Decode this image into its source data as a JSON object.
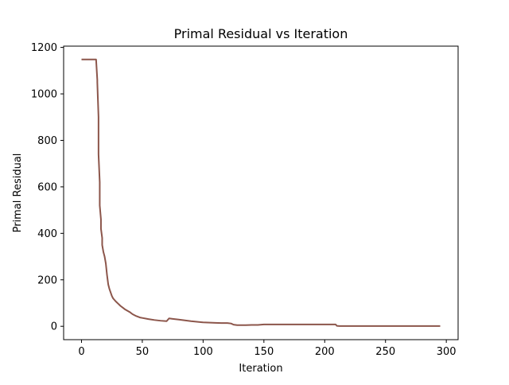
{
  "chart_data": {
    "type": "line",
    "title": "Primal Residual vs Iteration",
    "xlabel": "Iteration",
    "ylabel": "Primal Residual",
    "xlim": [
      -14.7,
      309.7
    ],
    "ylim": [
      -57.5,
      1205.5
    ],
    "xticks": [
      0,
      50,
      100,
      150,
      200,
      250,
      300
    ],
    "yticks": [
      0,
      200,
      400,
      600,
      800,
      1000,
      1200
    ],
    "grid": false,
    "legend": "none",
    "series": [
      {
        "color": "#8c564b",
        "x": [
          0,
          12,
          13,
          13,
          14,
          14,
          15,
          15,
          16,
          16,
          17,
          17,
          18,
          19,
          20,
          21,
          22,
          23,
          24,
          25,
          26,
          28,
          30,
          32,
          34,
          36,
          38,
          40,
          42,
          45,
          48,
          50,
          55,
          60,
          65,
          70,
          72,
          75,
          80,
          90,
          100,
          110,
          115,
          120,
          123,
          125,
          128,
          130,
          135,
          140,
          145,
          150,
          155,
          160,
          170,
          180,
          190,
          200,
          205,
          209,
          210,
          212,
          220,
          240,
          260,
          280,
          295
        ],
        "y": [
          1148,
          1148,
          1060,
          1050,
          900,
          740,
          620,
          520,
          460,
          420,
          380,
          350,
          320,
          300,
          270,
          220,
          180,
          160,
          145,
          130,
          120,
          108,
          98,
          88,
          80,
          72,
          66,
          60,
          52,
          44,
          38,
          36,
          31,
          27,
          24,
          22,
          34,
          32,
          29,
          22,
          17,
          15,
          14,
          14,
          12,
          7,
          5,
          5,
          5,
          6,
          6,
          8,
          8,
          8,
          8,
          8,
          8,
          8,
          8,
          8,
          2,
          1,
          1,
          1,
          1,
          1,
          1
        ]
      }
    ]
  }
}
